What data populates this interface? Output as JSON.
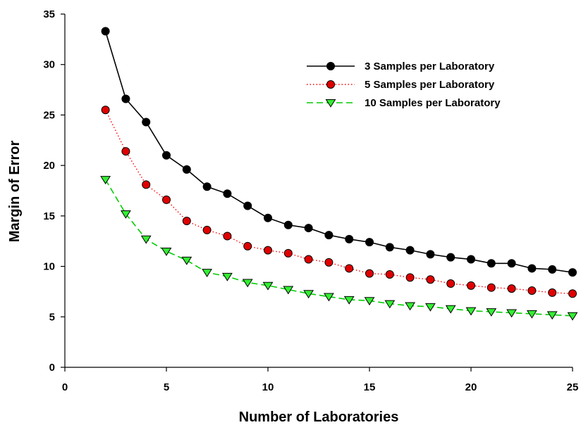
{
  "chart_data": {
    "type": "line",
    "title": "",
    "xlabel": "Number of Laboratories",
    "ylabel": "Margin of Error",
    "xlim": [
      0,
      25
    ],
    "ylim": [
      0,
      35
    ],
    "xticks": [
      0,
      5,
      10,
      15,
      20,
      25
    ],
    "yticks": [
      0,
      5,
      10,
      15,
      20,
      25,
      30,
      35
    ],
    "grid": false,
    "legend_position": "top-right",
    "x": [
      2,
      3,
      4,
      5,
      6,
      7,
      8,
      9,
      10,
      11,
      12,
      13,
      14,
      15,
      16,
      17,
      18,
      19,
      20,
      21,
      22,
      23,
      24,
      25
    ],
    "series": [
      {
        "name": "3 Samples per Laboratory",
        "marker": "circle",
        "line_style": "solid",
        "line_color": "#000000",
        "marker_color": "#000000",
        "values": [
          33.3,
          26.6,
          24.3,
          21.0,
          19.6,
          17.9,
          17.2,
          16.0,
          14.8,
          14.1,
          13.8,
          13.1,
          12.7,
          12.4,
          11.9,
          11.6,
          11.2,
          10.9,
          10.7,
          10.3,
          10.3,
          9.8,
          9.7,
          9.4
        ]
      },
      {
        "name": "5 Samples per Laboratory",
        "marker": "circle",
        "line_style": "dotted",
        "line_color": "#ff0000",
        "marker_color": "#e00000",
        "values": [
          25.5,
          21.4,
          18.1,
          16.6,
          14.5,
          13.6,
          13.0,
          12.0,
          11.6,
          11.3,
          10.7,
          10.4,
          9.8,
          9.3,
          9.2,
          8.9,
          8.7,
          8.3,
          8.1,
          7.9,
          7.8,
          7.6,
          7.4,
          7.3
        ]
      },
      {
        "name": "10 Samples per Laboratory",
        "marker": "triangle-down",
        "line_style": "dashed",
        "line_color": "#00cc00",
        "marker_color": "#33ee33",
        "values": [
          18.6,
          15.2,
          12.7,
          11.5,
          10.6,
          9.4,
          9.0,
          8.4,
          8.1,
          7.7,
          7.3,
          7.0,
          6.7,
          6.6,
          6.3,
          6.1,
          6.0,
          5.8,
          5.6,
          5.5,
          5.4,
          5.3,
          5.2,
          5.1
        ]
      }
    ]
  }
}
